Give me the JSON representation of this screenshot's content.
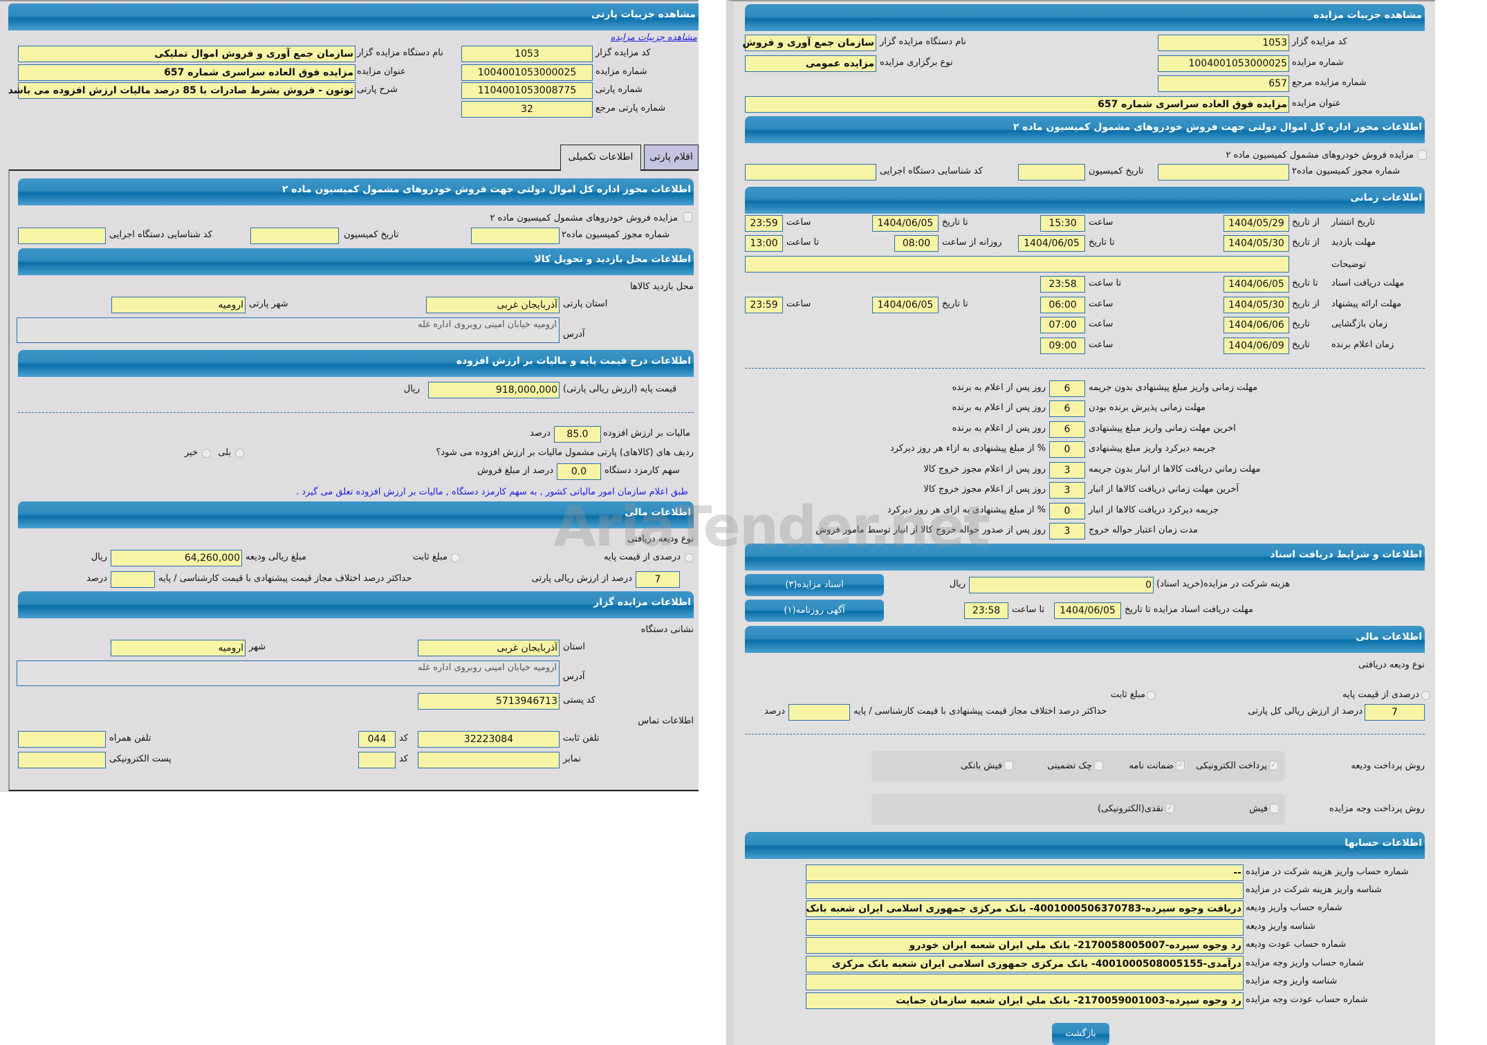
{
  "left": {
    "title": "مشاهده جزییات پارتی",
    "link": "مشاهده جزییات مزایده",
    "code_label": "کد مزایده گزار",
    "code": "1053",
    "auction_no_label": "شماره مزایده",
    "auction_no": "1004001053000025",
    "lot_no_label": "شماره پارتی",
    "lot_no": "1104001053008775",
    "ref_lot_label": "شماره پارتی مرجع",
    "ref_lot": "32",
    "org_label": "نام دستگاه مزایده گزار",
    "org": "سازمان جمع آوری و فروش اموال تملیکی",
    "title_label": "عنوان مزایده",
    "auction_title": "مزایده فوق العاده سراسری شماره 657",
    "desc_label": "شرح پارتی",
    "desc": "توتون - فروش بشرط صادرات با 85 درصد مالیات ارزش افزوده می باشد",
    "tabs": [
      {
        "label": "اقلام پارتی",
        "active": false
      },
      {
        "label": "اطلاعات تکمیلی",
        "active": true
      }
    ],
    "permit": {
      "header": "اطلاعات مجوز اداره کل اموال دولتی جهت فروش خودروهای مشمول کمیسیون ماده ۲",
      "checkbox": "مزایده فروش خودروهای مشمول کمیسیون ماده ۲",
      "checked": false,
      "permit_no": "شماره مجوز کمیسیون ماده۲",
      "date": "تاریخ کمیسیون",
      "exec_code": "کد شناسایی دستگاه اجرایی"
    },
    "visit": {
      "header": "اطلاعات محل بازدید و تحویل کالا",
      "place": "محل بازدید کالاها",
      "province_label": "استان پارتی",
      "province": "آذربایجان غربی",
      "city_label": "شهر پارتی",
      "city": "ارومیه",
      "address_label": "آدرس",
      "address": "ارومیه خیابان امینی روبروی اداره غله"
    },
    "price": {
      "header": "اطلاعات درج قیمت پایه و مالیات بر ارزش افزوده",
      "base_label": "قیمت پایه (ارزش ریالی پارتی)",
      "base": "918,000,000",
      "rial": "ریال",
      "vat_label": "مالیات بر ارزش افزوده",
      "vat": "85.0",
      "percent": "درصد",
      "q": "ردیف های (کالاهای) پارتی مشمول مالیات بر ارزش افزوده می شود؟",
      "yes": "بلی",
      "no": "خیر",
      "fee_label": "سهم کارمزد دستگاه",
      "fee": "0.0",
      "fee_suffix": "درصد از مبلغ فروش",
      "note": "طبق اعلام سازمان امور مالیاتی کشور , به سهم کارمزد دستگاه , مالیات بر ارزش افزوده تعلق می گیرد ."
    },
    "finance": {
      "header": "اطلاعات مالی",
      "type": "نوع ودیعه دریافتی",
      "pct_option": "درصدی از قیمت پایه",
      "fixed_option": "مبلغ ثابت",
      "amount_label": "مبلغ ریالی ودیعه",
      "amount": "64,260,000",
      "rial": "ریال",
      "pct": "7",
      "pct_suffix": "درصد از ارزش ریالی پارتی",
      "max_label": "حداکثر درصد اختلاف مجاز قیمت پیشنهادی با قیمت کارشناسی / پایه",
      "max_suffix": "درصد"
    },
    "auctioneer": {
      "header": "اطلاعات مزایده گزار",
      "addr_title": "نشانی دستگاه",
      "province_label": "استان",
      "province": "آذربایجان غربی",
      "city_label": "شهر",
      "city": "ارومیه",
      "address_label": "آدرس",
      "address": "ارومیه خیابان امینی روبروی اداره غله",
      "postal_label": "کد پستی",
      "postal": "5713946713",
      "contact": "اطلاعات تماس",
      "phone_label": "تلفن ثابت",
      "phone": "32223084",
      "code_label": "کد",
      "code": "044",
      "mobile_label": "تلفن همراه",
      "fax_label": "نمابر",
      "fax_code_label": "کد",
      "email_label": "پست الکترونیکی"
    }
  },
  "right": {
    "title": "مشاهده جزییات مزایده",
    "code_label": "کد مزایده گزار",
    "code": "1053",
    "auction_no_label": "شماره مزایده",
    "auction_no": "1004001053000025",
    "ref_label": "شماره مزایده مرجع",
    "ref": "657",
    "title_label": "عنوان مزایده",
    "auction_title": "مزایده فوق العاده سراسری شماره 657",
    "org_label": "نام دستگاه مزایده گزار",
    "org": "سازمان جمع آوری و فروش",
    "type_label": "نوع برگزاری مزایده",
    "type": "مزایده عمومی",
    "permit": {
      "header": "اطلاعات مجوز اداره کل اموال دولتی جهت فروش خودروهای مشمول کمیسیون ماده ۲",
      "checkbox": "مزایده فروش خودروهای مشمول کمیسیون ماده ۲",
      "permit_no": "شماره مجوز کمیسیون ماده۲",
      "date": "تاریخ کمیسیون",
      "exec_code": "کد شناسایی دستگاه اجرایی"
    },
    "time": {
      "header": "اطلاعات زمانی",
      "publish": {
        "label": "تاریخ انتشار",
        "from": "از تاریخ",
        "from_date": "1404/05/29",
        "time_label": "ساعت",
        "time": "15:30",
        "to": "تا تاریخ",
        "to_date": "1404/06/05",
        "to_time_label": "ساعت",
        "to_time": "23:59"
      },
      "visit": {
        "label": "مهلت بازدید",
        "from": "از تاریخ",
        "from_date": "1404/05/30",
        "to": "تا تاریخ",
        "to_date": "1404/06/05",
        "daily": "روزانه از ساعت",
        "daily_from": "08:00",
        "to_time_label": "تا ساعت",
        "to_time": "13:00"
      },
      "notes_label": "توضیحات",
      "docs": {
        "label": "مهلت دریافت اسناد",
        "to": "تا تاریخ",
        "date": "1404/06/05",
        "time_label": "تا ساعت",
        "time": "23:58"
      },
      "offer": {
        "label": "مهلت ارائه پیشنهاد",
        "from": "از تاریخ",
        "from_date": "1404/05/30",
        "time_label": "ساعت",
        "time": "06:00",
        "to": "تا تاریخ",
        "to_date": "1404/06/05",
        "to_time_label": "ساعت",
        "to_time": "23:59"
      },
      "opening": {
        "label": "زمان بازگشایی",
        "date_label": "تاریخ",
        "date": "1404/06/06",
        "time_label": "ساعت",
        "time": "07:00"
      },
      "winner": {
        "label": "زمان اعلام برنده",
        "date_label": "تاریخ",
        "date": "1404/06/09",
        "time_label": "ساعت",
        "time": "09:00"
      }
    },
    "deadlines": [
      {
        "label": "مهلت زمانی واریز مبلغ پیشنهادی بدون جریمه",
        "value": "6",
        "suffix": "روز پس از اعلام به برنده"
      },
      {
        "label": "مهلت زمانی پذیرش برنده بودن",
        "value": "6",
        "suffix": "روز پس از اعلام به برنده"
      },
      {
        "label": "اخرین مهلت زمانی واریز مبلغ پیشنهادی",
        "value": "6",
        "suffix": "روز پس از اعلام به برنده"
      },
      {
        "label": "جریمه دیرکرد واریز مبلغ پیشنهادی",
        "value": "0",
        "suffix": "% از مبلغ پیشنهادی به ازاء هر روز دیرکرد"
      },
      {
        "label": "مهلت زماني دريافت کالاها از انبار بدون جريمه",
        "value": "3",
        "suffix": "روز پس از اعلام مجوز خروج کالا"
      },
      {
        "label": "آخرين مهلت زماني دريافت کالاها از انبار",
        "value": "3",
        "suffix": "روز پس از اعلام مجوز خروج کالا"
      },
      {
        "label": "جریمه دیرکرد دریافت کالاها از انبار",
        "value": "0",
        "suffix": "% از مبلغ پیشنهادی به ازای هر روز دیرکرد"
      },
      {
        "label": "مدت زمان اعتبار حواله خروج",
        "value": "3",
        "suffix": "روز پس از صدور حواله خروج کالا از انبار توسط مامور فروش"
      }
    ],
    "docs": {
      "header": "اطلاعات و شرایط دریافت اسناد",
      "cost_label": "هزینه شرکت در مزایده(خرید اسناد)",
      "cost": "0",
      "rial": "ریال",
      "deadline_label": "مهلت دریافت اسناد مزایده تا تاریخ",
      "deadline_date": "1404/06/05",
      "time_label": "تا ساعت",
      "deadline_time": "23:58",
      "btn_docs": "اسناد مزایده(۳)",
      "btn_ad": "آگهی روزنامه(۱)"
    },
    "finance": {
      "header": "اطلاعات مالی",
      "type": "نوع ودیعه دریافتی",
      "pct_option": "درصدی از قیمت پایه",
      "fixed_option": "مبلغ ثابت",
      "pct": "7",
      "pct_suffix": "درصد از ارزش ریالی کل پارتی",
      "max_label": "حداکثر درصد اختلاف مجاز قیمت پیشنهادی با قیمت کارشناسی / پایه",
      "max_suffix": "درصد",
      "deposit_method": "روش پرداخت ودیعه",
      "deposit_options": [
        {
          "label": "پرداخت الکترونیکی",
          "checked": true
        },
        {
          "label": "ضمانت نامه",
          "checked": true
        },
        {
          "label": "چک تضمینی",
          "checked": false
        },
        {
          "label": "فیش بانکی",
          "checked": false
        }
      ],
      "pay_method": "روش پرداخت وجه مزایده",
      "pay_options": [
        {
          "label": "فیش",
          "checked": false
        },
        {
          "label": "نقدی(الکترونیکی)",
          "checked": true
        }
      ]
    },
    "accounts": {
      "header": "اطلاعات حسابها",
      "rows": [
        {
          "label": "شماره حساب واریز هزینه شرکت در مزایده",
          "value": "--"
        },
        {
          "label": "شناسه واریز هزینه شرکت در مزایده",
          "value": ""
        },
        {
          "label": "شماره حساب واریز ودیعه",
          "value": "دریافت وجوه سپرده-4001000506370783- بانک مرکزی جمهوری اسلامی ایران شعبه بانک"
        },
        {
          "label": "شناسه واریز ودیعه",
          "value": ""
        },
        {
          "label": "شماره حساب عودت ودیعه",
          "value": "رد وجوه سپرده-2170058005007- بانک ملي ايران شعبه ايران خودرو"
        },
        {
          "label": "شماره حساب واریز وجه مزایده",
          "value": "درآمدی-4001000508005155- بانک مرکزی جمهوری اسلامی ایران شعبه بانک مرکزی"
        },
        {
          "label": "شناسه واریز وجه مزایده",
          "value": ""
        },
        {
          "label": "شماره حساب عودت وجه مزایده",
          "value": "رد وجوه سپرده-2170059001003- بانک ملي ايران شعبه سازمان حمايت"
        }
      ]
    },
    "back": "بازگشت"
  },
  "watermark": "AriaTender.net",
  "colors": {
    "header": "#0a6fa8",
    "field": "#f7f4a6",
    "field_border": "#2b6fb0",
    "panel": "#dfdddf",
    "link": "#1a1ae6"
  }
}
